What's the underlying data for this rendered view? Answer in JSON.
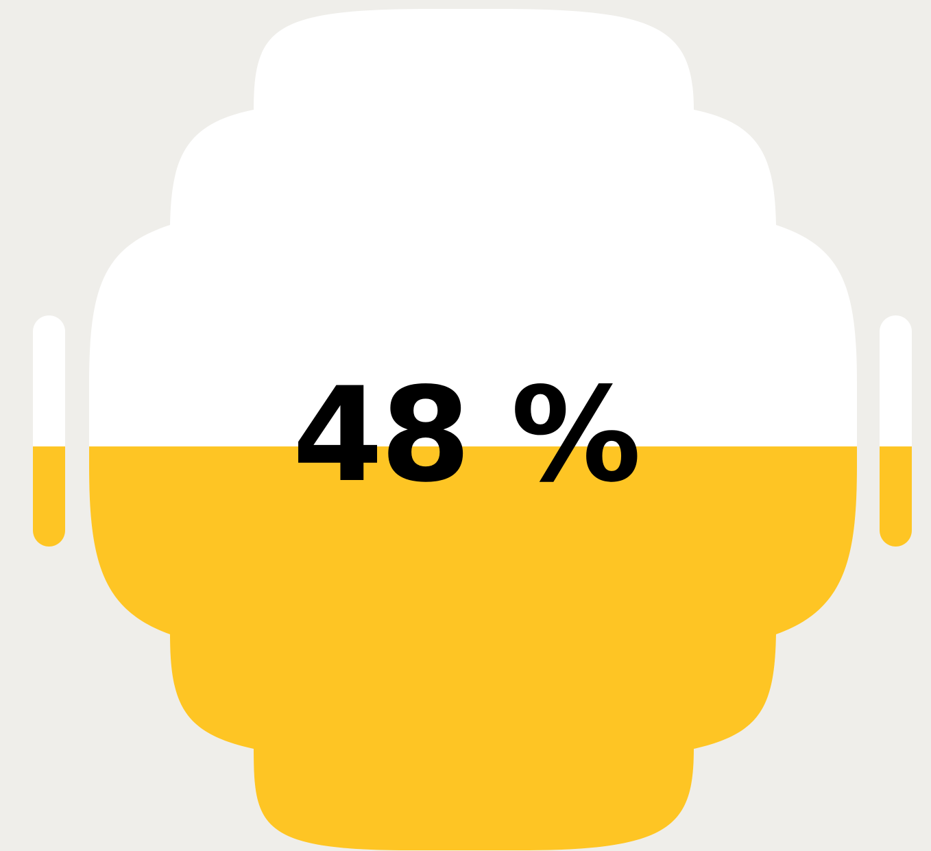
{
  "battery": {
    "level": 0.48,
    "display": "48 %"
  },
  "colors": {
    "background": "#efeeea",
    "empty": "#ffffff",
    "fill": "#fec524",
    "text": "#000000"
  },
  "icons": {
    "gauge": "stepped-battery-gauge-icon"
  }
}
